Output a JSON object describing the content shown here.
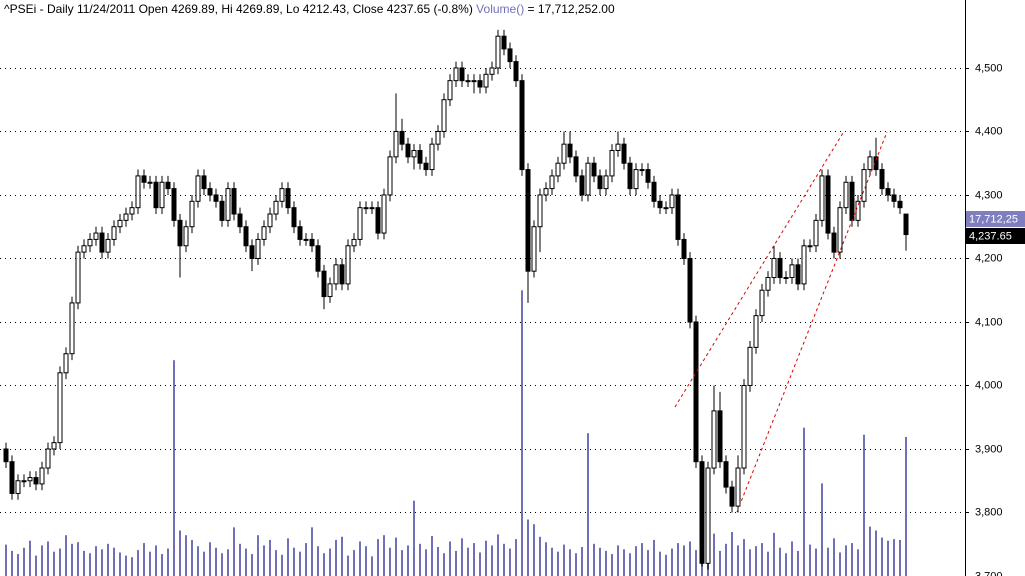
{
  "chart_data": {
    "type": "candlestick",
    "title": "^PSEi - Daily 11/24/2011 Open 4269.89, Hi 4269.89, Lo 4212.43, Close 4237.65 (-0.8%)",
    "volume_title": "Volume()",
    "volume_value_text": "= 17,712,252.00",
    "last_volume_label": "17,712,25",
    "last_close_label": "4,237.65",
    "up_color": "#ffffff",
    "down_color": "#000000",
    "volume_color": "#7070b8",
    "grid": true,
    "ylim": [
      3700,
      4607
    ],
    "yticks": [
      {
        "value": 3700,
        "label": "3,700"
      },
      {
        "value": 3800,
        "label": "3,800"
      },
      {
        "value": 3900,
        "label": "3,900"
      },
      {
        "value": 4000,
        "label": "4,000"
      },
      {
        "value": 4100,
        "label": "4,100"
      },
      {
        "value": 4200,
        "label": "4,200"
      },
      {
        "value": 4300,
        "label": "4,300"
      },
      {
        "value": 4400,
        "label": "4,400"
      },
      {
        "value": 4500,
        "label": "4,500"
      }
    ],
    "y2lim": [
      0,
      73400000
    ],
    "open": [
      3900,
      3880,
      3830,
      3850,
      3850,
      3855,
      3845,
      3870,
      3900,
      3910,
      4020,
      4050,
      4130,
      4210,
      4220,
      4230,
      4240,
      4210,
      4230,
      4250,
      4260,
      4270,
      4280,
      4330,
      4320,
      4320,
      4280,
      4320,
      4310,
      4260,
      4220,
      4250,
      4290,
      4330,
      4310,
      4300,
      4290,
      4260,
      4310,
      4270,
      4250,
      4220,
      4200,
      4230,
      4250,
      4270,
      4290,
      4310,
      4280,
      4250,
      4230,
      4230,
      4220,
      4180,
      4140,
      4160,
      4190,
      4160,
      4220,
      4230,
      4280,
      4280,
      4280,
      4240,
      4300,
      4360,
      4400,
      4380,
      4360,
      4370,
      4350,
      4340,
      4380,
      4400,
      4450,
      4480,
      4500,
      4480,
      4480,
      4480,
      4470,
      4490,
      4500,
      4550,
      4530,
      4510,
      4480,
      4340,
      4180,
      4250,
      4300,
      4310,
      4330,
      4350,
      4380,
      4360,
      4330,
      4300,
      4350,
      4330,
      4310,
      4330,
      4370,
      4380,
      4350,
      4310,
      4340,
      4340,
      4320,
      4290,
      4280,
      4280,
      4300,
      4230,
      4200,
      4100,
      3880,
      3720,
      3870,
      3960,
      3880,
      3840,
      3810,
      3870,
      4000,
      4060,
      4110,
      4150,
      4170,
      4200,
      4170,
      4170,
      4190,
      4160,
      4220,
      4220,
      4260,
      4330,
      4240,
      4210,
      4280,
      4320,
      4260,
      4290,
      4340,
      4360,
      4340,
      4310,
      4300,
      4290,
      4269.89
    ],
    "high": [
      3910,
      3890,
      3860,
      3860,
      3865,
      3865,
      3880,
      3910,
      3920,
      4030,
      4060,
      4140,
      4220,
      4230,
      4240,
      4250,
      4250,
      4240,
      4260,
      4270,
      4280,
      4290,
      4340,
      4340,
      4330,
      4330,
      4330,
      4330,
      4320,
      4270,
      4260,
      4300,
      4340,
      4340,
      4320,
      4310,
      4300,
      4320,
      4320,
      4280,
      4260,
      4230,
      4240,
      4260,
      4280,
      4300,
      4320,
      4320,
      4290,
      4260,
      4240,
      4240,
      4230,
      4190,
      4170,
      4200,
      4200,
      4230,
      4240,
      4290,
      4290,
      4290,
      4290,
      4310,
      4370,
      4460,
      4420,
      4390,
      4380,
      4380,
      4360,
      4390,
      4410,
      4460,
      4490,
      4510,
      4510,
      4490,
      4490,
      4490,
      4500,
      4510,
      4560,
      4560,
      4540,
      4520,
      4490,
      4350,
      4260,
      4310,
      4320,
      4340,
      4360,
      4400,
      4400,
      4370,
      4340,
      4360,
      4360,
      4340,
      4340,
      4380,
      4400,
      4390,
      4360,
      4350,
      4350,
      4350,
      4330,
      4300,
      4290,
      4310,
      4310,
      4240,
      4210,
      4110,
      3890,
      3880,
      4000,
      3990,
      3890,
      3850,
      3890,
      4010,
      4070,
      4120,
      4160,
      4180,
      4220,
      4210,
      4180,
      4200,
      4200,
      4230,
      4230,
      4270,
      4340,
      4340,
      4250,
      4290,
      4330,
      4330,
      4300,
      4350,
      4370,
      4390,
      4350,
      4320,
      4310,
      4300,
      4269.89
    ],
    "low": [
      3870,
      3820,
      3820,
      3840,
      3840,
      3835,
      3835,
      3860,
      3890,
      3900,
      4010,
      4040,
      4120,
      4200,
      4210,
      4220,
      4200,
      4200,
      4220,
      4240,
      4250,
      4260,
      4270,
      4310,
      4310,
      4270,
      4270,
      4300,
      4250,
      4170,
      4210,
      4240,
      4280,
      4300,
      4290,
      4280,
      4250,
      4250,
      4260,
      4240,
      4210,
      4180,
      4190,
      4220,
      4240,
      4260,
      4280,
      4270,
      4240,
      4220,
      4220,
      4210,
      4170,
      4120,
      4130,
      4150,
      4150,
      4150,
      4210,
      4220,
      4270,
      4270,
      4230,
      4230,
      4290,
      4350,
      4370,
      4350,
      4340,
      4340,
      4330,
      4330,
      4370,
      4390,
      4440,
      4470,
      4470,
      4470,
      4460,
      4460,
      4460,
      4480,
      4490,
      4520,
      4500,
      4470,
      4330,
      4130,
      4170,
      4210,
      4290,
      4300,
      4320,
      4340,
      4350,
      4320,
      4290,
      4290,
      4320,
      4300,
      4300,
      4320,
      4360,
      4340,
      4300,
      4300,
      4330,
      4310,
      4280,
      4270,
      4270,
      4270,
      4220,
      4190,
      4090,
      3870,
      3715,
      3710,
      3860,
      3870,
      3830,
      3800,
      3800,
      3860,
      3990,
      4050,
      4100,
      4140,
      4160,
      4160,
      4160,
      4160,
      4150,
      4150,
      4210,
      4210,
      4250,
      4230,
      4200,
      4200,
      4270,
      4250,
      4250,
      4280,
      4330,
      4330,
      4300,
      4290,
      4280,
      4270,
      4212.43
    ],
    "close": [
      3880,
      3830,
      3850,
      3850,
      3855,
      3845,
      3870,
      3900,
      3910,
      4020,
      4050,
      4130,
      4210,
      4220,
      4230,
      4240,
      4210,
      4230,
      4250,
      4260,
      4270,
      4280,
      4330,
      4320,
      4320,
      4280,
      4320,
      4310,
      4260,
      4220,
      4250,
      4290,
      4330,
      4310,
      4300,
      4290,
      4260,
      4310,
      4270,
      4250,
      4220,
      4200,
      4230,
      4250,
      4270,
      4290,
      4310,
      4280,
      4250,
      4230,
      4230,
      4220,
      4180,
      4140,
      4160,
      4190,
      4160,
      4220,
      4230,
      4280,
      4280,
      4280,
      4240,
      4300,
      4360,
      4400,
      4380,
      4360,
      4370,
      4350,
      4340,
      4380,
      4400,
      4450,
      4480,
      4500,
      4480,
      4480,
      4480,
      4470,
      4490,
      4500,
      4550,
      4530,
      4510,
      4480,
      4340,
      4180,
      4250,
      4300,
      4310,
      4330,
      4350,
      4380,
      4360,
      4330,
      4300,
      4350,
      4330,
      4310,
      4330,
      4370,
      4380,
      4350,
      4310,
      4340,
      4340,
      4320,
      4290,
      4280,
      4280,
      4300,
      4230,
      4200,
      4100,
      3880,
      3720,
      3870,
      3960,
      3880,
      3840,
      3810,
      3870,
      4000,
      4060,
      4110,
      4150,
      4170,
      4200,
      4170,
      4170,
      4190,
      4160,
      4220,
      4220,
      4260,
      4330,
      4240,
      4210,
      4280,
      4320,
      4260,
      4290,
      4340,
      4360,
      4340,
      4310,
      4300,
      4290,
      4280,
      4237.65
    ],
    "volume": [
      4000000,
      3200000,
      2800000,
      3600000,
      4500000,
      2600000,
      3900000,
      4400000,
      3100000,
      3500000,
      5200000,
      4100000,
      4300000,
      3200000,
      2900000,
      3800000,
      3400000,
      4100000,
      3600000,
      3000000,
      2600000,
      2400000,
      3300000,
      4200000,
      3100000,
      3900000,
      2800000,
      3500000,
      27500000,
      5800000,
      5200000,
      4600000,
      3800000,
      3100000,
      4300000,
      3600000,
      2900000,
      3400000,
      6200000,
      4100000,
      3500000,
      2800000,
      5200000,
      3900000,
      4600000,
      3300000,
      2700000,
      4800000,
      3600000,
      3100000,
      4200000,
      6200000,
      3800000,
      2900000,
      3500000,
      4600000,
      5000000,
      2600000,
      3300000,
      4400000,
      3800000,
      2500000,
      4700000,
      5200000,
      3600000,
      4900000,
      3300000,
      3900000,
      9600000,
      4100000,
      3400000,
      5100000,
      3700000,
      2900000,
      4400000,
      3200000,
      4800000,
      3600000,
      4200000,
      3000000,
      4500000,
      3900000,
      5300000,
      4100000,
      3500000,
      4700000,
      36400000,
      7200000,
      6600000,
      5000000,
      4300000,
      3600000,
      3100000,
      4000000,
      3400000,
      2900000,
      3700000,
      18200000,
      4100000,
      3600000,
      3200000,
      2800000,
      3900000,
      3400000,
      2900000,
      3800000,
      4200000,
      3300000,
      4600000,
      3100000,
      2700000,
      3500000,
      4200000,
      3900000,
      4400000,
      3300000,
      7600000,
      4800000,
      5400000,
      3200000,
      4100000,
      5600000,
      3900000,
      4700000,
      3400000,
      3800000,
      4200000,
      3100000,
      5500000,
      3600000,
      2900000,
      4400000,
      3200000,
      18900000,
      4000000,
      3500000,
      11800000,
      3600000,
      4800000,
      3000000,
      3900000,
      4200000,
      3400000,
      18000000,
      6300000,
      5800000,
      4900000,
      4500000,
      4700000,
      4600000,
      17712252
    ]
  }
}
